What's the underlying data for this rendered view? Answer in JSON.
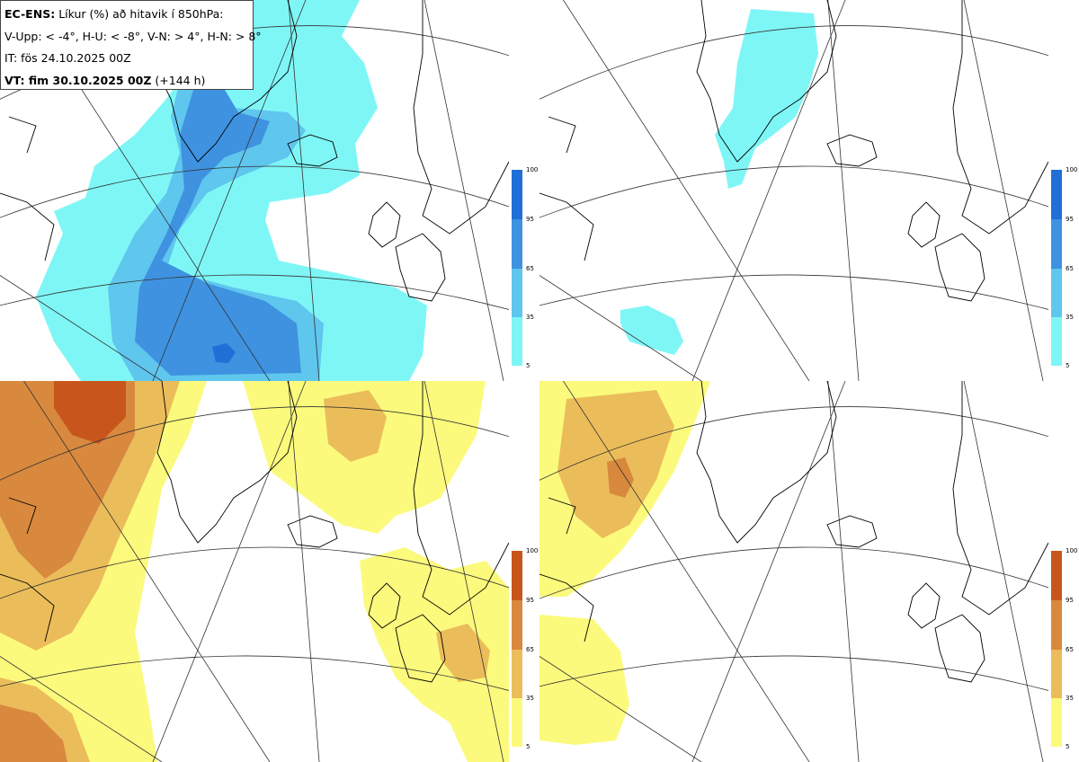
{
  "info": {
    "model": "EC-ENS:",
    "title": "Líkur (%) að hitavik í 850hPa:",
    "legend_line": "V-Upp: < -4°, H-U: < -8°, V-N: > 4°, H-N: > 8°",
    "init_time": "IT: fös 24.10.2025 00Z",
    "valid_label": "VT: fim 30.10.2025 00Z",
    "lead_time": "(+144 h)"
  },
  "colorbars": {
    "ticks": [
      "100",
      "95",
      "65",
      "35",
      "5"
    ],
    "cold_colors": [
      "#1f6fd6",
      "#3e92e0",
      "#5fc6ee",
      "#7ff6f6"
    ],
    "warm_colors": [
      "#c8561c",
      "#d8893e",
      "#ebbd5a",
      "#fbfa7d"
    ]
  },
  "panels": [
    {
      "position": "top-left",
      "variable": "V-Upp (< -4°)",
      "palette": "cold"
    },
    {
      "position": "top-right",
      "variable": "H-U (< -8°)",
      "palette": "cold"
    },
    {
      "position": "bottom-left",
      "variable": "V-N (> 4°)",
      "palette": "warm"
    },
    {
      "position": "bottom-right",
      "variable": "H-N (> 8°)",
      "palette": "warm"
    }
  ]
}
